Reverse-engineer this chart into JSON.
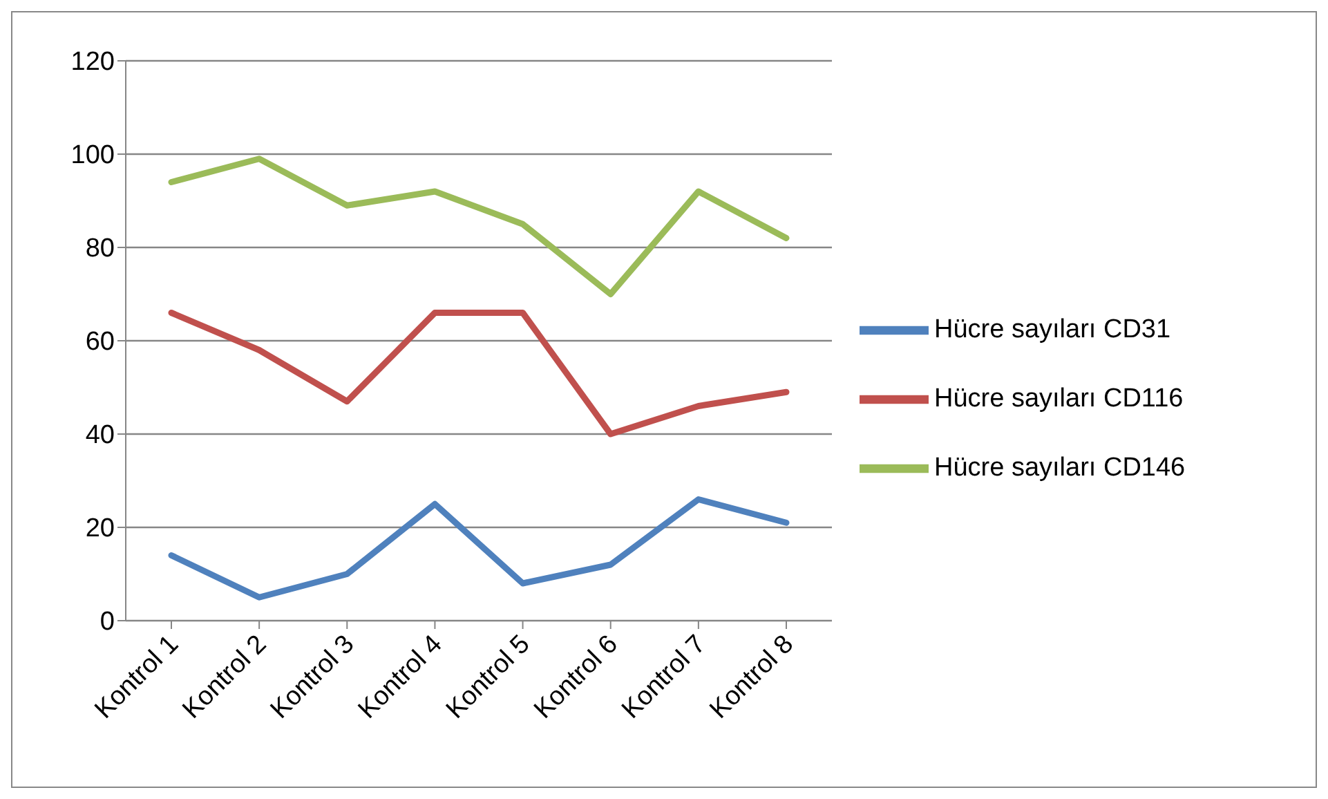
{
  "chart_data": {
    "type": "line",
    "categories": [
      "Kontrol 1",
      "Kontrol 2",
      "Kontrol 3",
      "Kontrol 4",
      "Kontrol 5",
      "Kontrol 6",
      "Kontrol 7",
      "Kontrol 8"
    ],
    "series": [
      {
        "name": "Hücre sayıları CD31",
        "color": "#4f81bd",
        "values": [
          14,
          5,
          10,
          25,
          8,
          12,
          26,
          21
        ]
      },
      {
        "name": "Hücre sayıları CD116",
        "color": "#c0504d",
        "values": [
          66,
          58,
          47,
          66,
          66,
          40,
          46,
          49
        ]
      },
      {
        "name": "Hücre sayıları CD146",
        "color": "#9bbb59",
        "values": [
          94,
          99,
          89,
          92,
          85,
          70,
          92,
          82
        ]
      }
    ],
    "ylim": [
      0,
      120
    ],
    "yticks": [
      0,
      20,
      40,
      60,
      80,
      100,
      120
    ],
    "grid": "y",
    "legend": "right",
    "marker": "none",
    "line_style": "solid"
  }
}
